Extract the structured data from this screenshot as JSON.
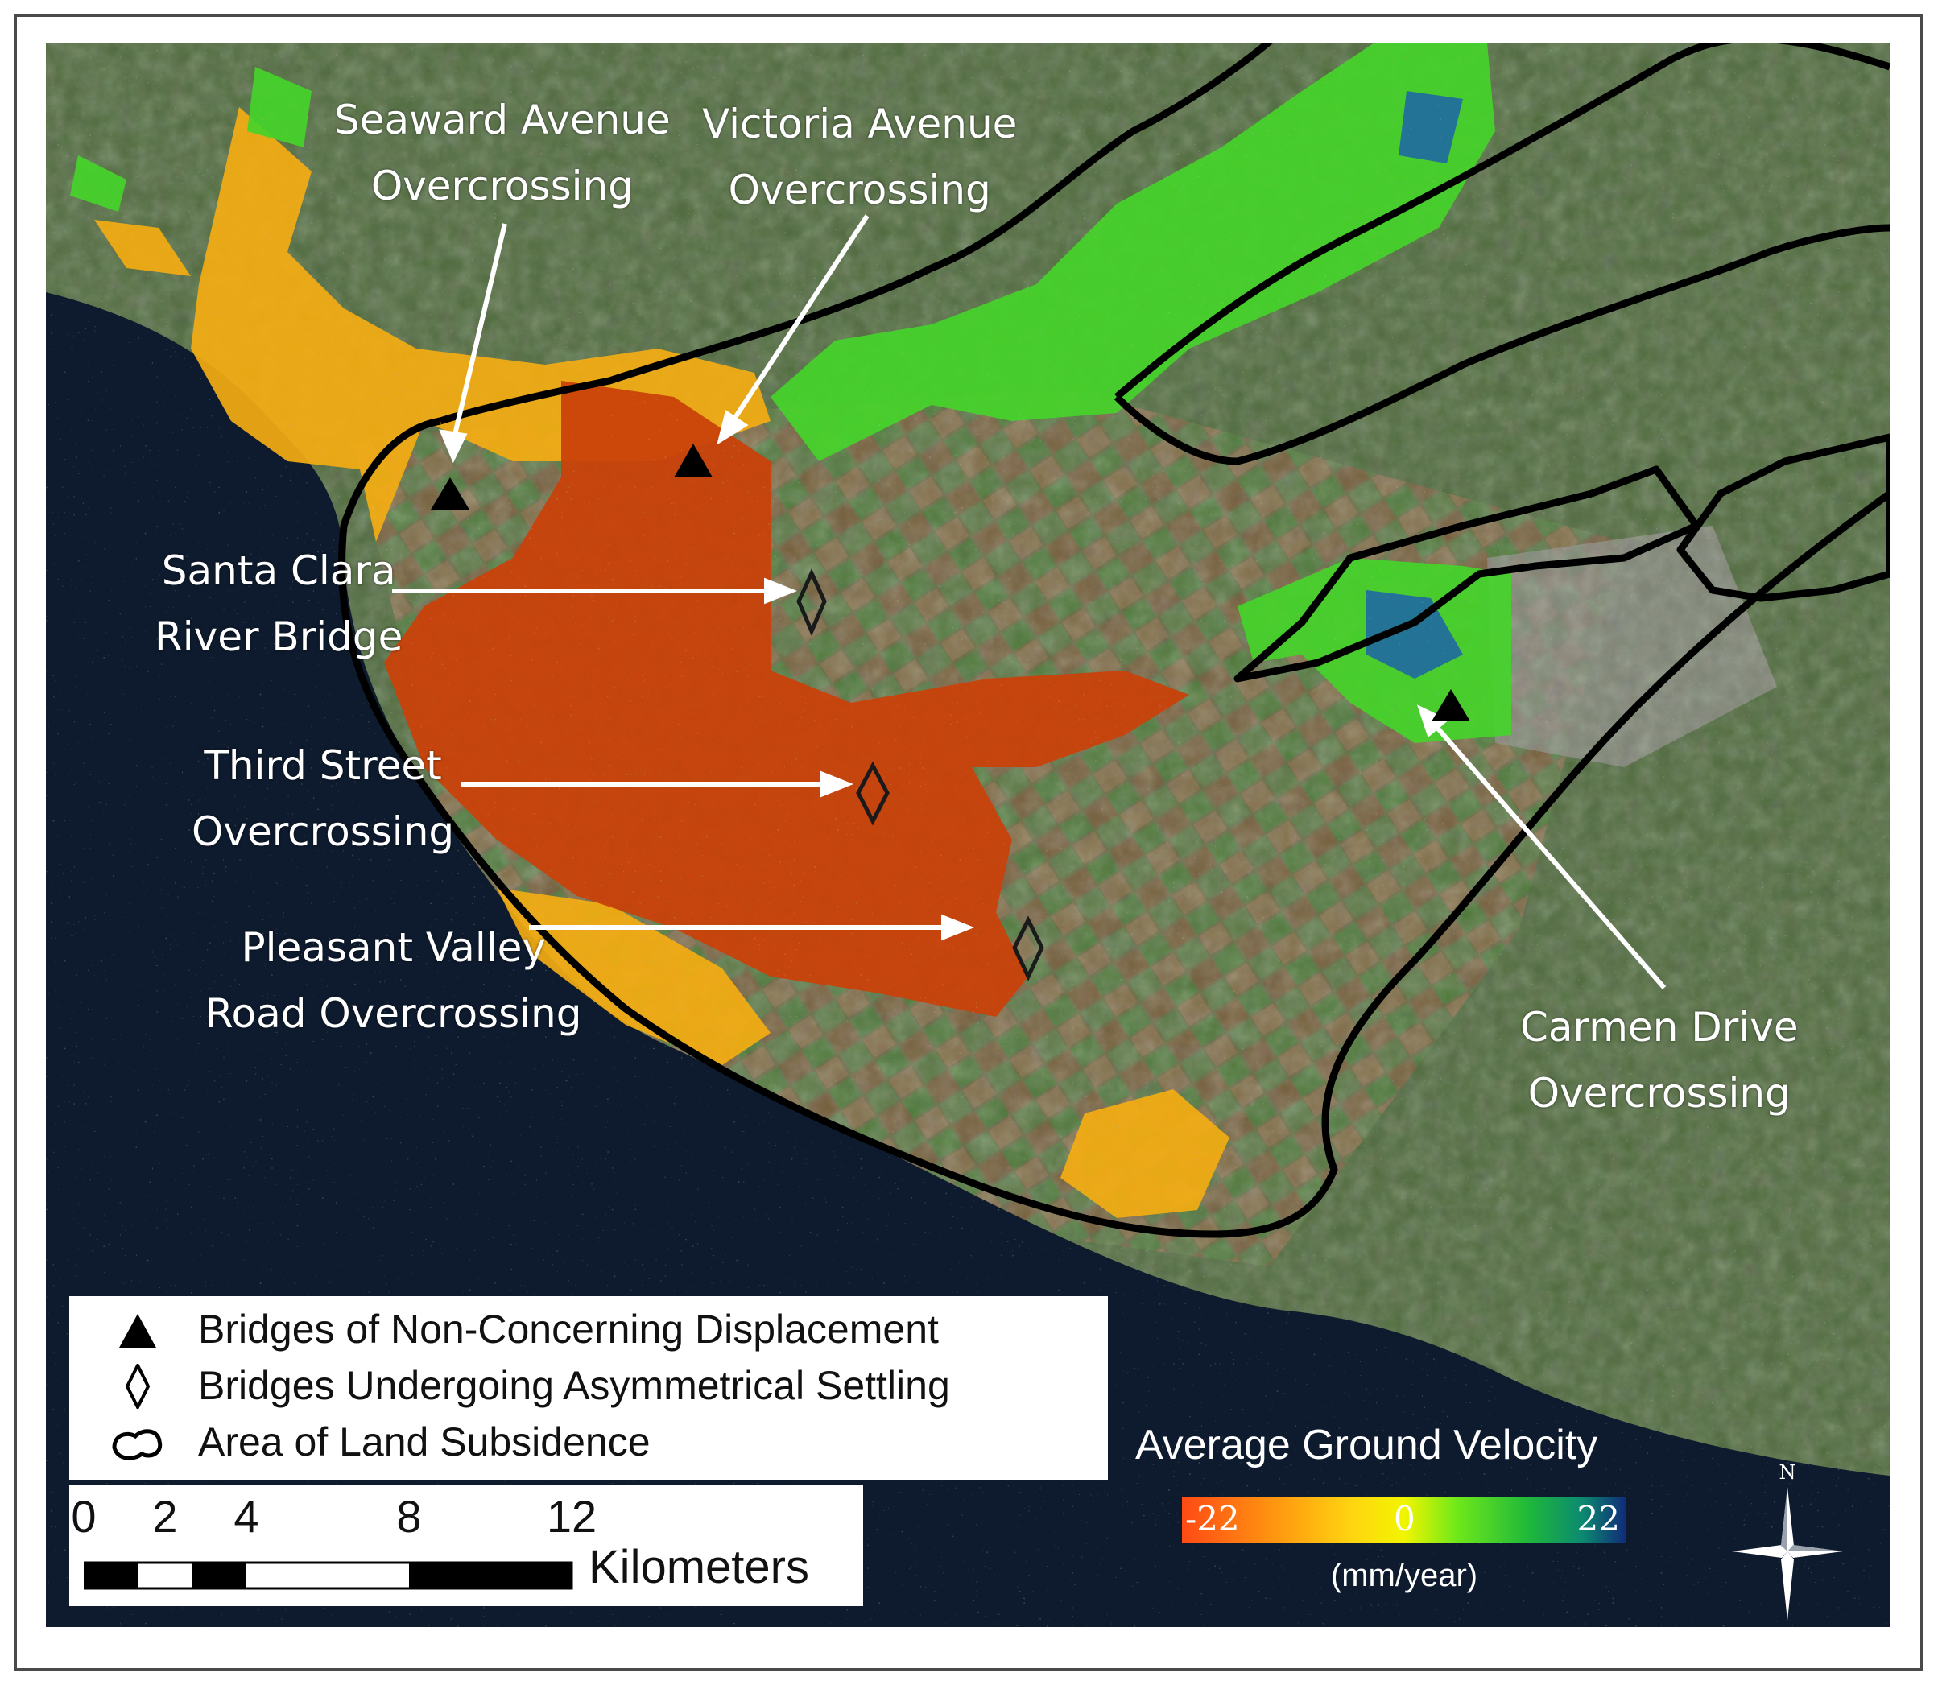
{
  "callouts": {
    "seaward": [
      "Seaward Avenue",
      "Overcrossing"
    ],
    "victoria": [
      "Victoria Avenue",
      "Overcrossing"
    ],
    "santa_clara": [
      "Santa Clara",
      "River Bridge"
    ],
    "third_street": [
      "Third Street",
      "Overcrossing"
    ],
    "pleasant_valley": [
      "Pleasant Valley",
      "Road Overcrossing"
    ],
    "carmen": [
      "Carmen Drive",
      "Overcrossing"
    ]
  },
  "legend": {
    "items": [
      {
        "icon": "filled-triangle-icon",
        "label": "Bridges of Non-Concerning Displacement"
      },
      {
        "icon": "hollow-diamond-icon",
        "label": "Bridges Undergoing Asymmetrical Settling"
      },
      {
        "icon": "outline-polygon-icon",
        "label": "Area of Land Subsidence"
      }
    ]
  },
  "scale_bar": {
    "ticks": [
      "0",
      "2",
      "4",
      "8",
      "12"
    ],
    "unit": "Kilometers"
  },
  "colorbar": {
    "title": "Average Ground Velocity",
    "min_label": "-22",
    "mid_label": "0",
    "max_label": "22",
    "unit": "(mm/year)",
    "colors": [
      "#ff4a14",
      "#ffb010",
      "#f2f500",
      "#1ec83a",
      "#102a7a"
    ]
  },
  "north_arrow": {
    "label": "N",
    "icon": "compass-rose-icon"
  },
  "colors": {
    "ocean": "#0e1b2e",
    "land": "#4f6a3c",
    "subsidence_boundary": "#000000",
    "strong_subsidence": "#c9410a",
    "moderate_subsidence": "#f4ac12",
    "stable": "#45d42a",
    "uplift": "#1a5db0"
  }
}
